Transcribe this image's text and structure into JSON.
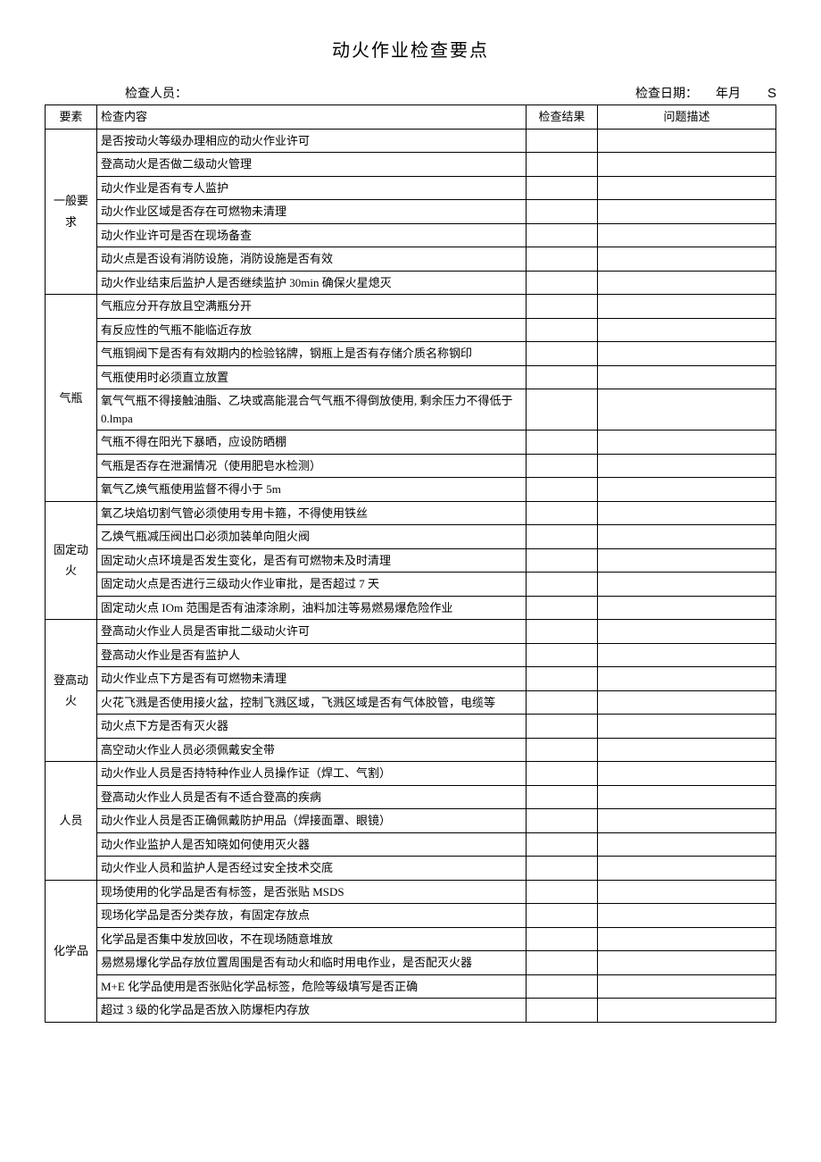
{
  "title": "动火作业检查要点",
  "header": {
    "inspector_label": "检查人员：",
    "date_label": "检查日期：",
    "date_ym": "年月",
    "date_s": "S"
  },
  "table": {
    "columns": [
      "要素",
      "检查内容",
      "检查结果",
      "问题描述"
    ],
    "sections": [
      {
        "category": "一般要求",
        "rows": [
          "是否按动火等级办理相应的动火作业许可",
          "登高动火是否做二级动火管理",
          "动火作业是否有专人监护",
          "动火作业区域是否存在可燃物未清理",
          "动火作业许可是否在现场备查",
          "动火点是否设有消防设施，消防设施是否有效",
          "动火作业结束后监护人是否继续监护 30min 确保火星熄灭"
        ]
      },
      {
        "category": "气瓶",
        "rows": [
          "气瓶应分开存放且空满瓶分开",
          "有反应性的气瓶不能临近存放",
          "气瓶铜阀下是否有有效期内的检验铭牌，钢瓶上是否有存储介质名称钢印",
          "气瓶使用时必须直立放置",
          "氧气气瓶不得接触油脂、乙块或高能混合气气瓶不得倒放使用, 剩余压力不得低于 0.lmpa",
          "气瓶不得在阳光下暴晒，应设防晒棚",
          "气瓶是否存在泄漏情况（使用肥皂水检测）",
          "氧气乙焕气瓶使用监督不得小于 5m"
        ]
      },
      {
        "category": "固定动火",
        "rows": [
          "氧乙块焰切割气管必须使用专用卡箍，不得使用铁丝",
          "乙焕气瓶减压阀出口必须加装单向阻火阀",
          "固定动火点环境是否发生变化，是否有可燃物未及时清理",
          "固定动火点是否进行三级动火作业审批，是否超过 7 天",
          "固定动火点 IOm 范围是否有油漆涂刷，油料加注等易燃易爆危险作业"
        ]
      },
      {
        "category": "登高动火",
        "rows": [
          "登高动火作业人员是否审批二级动火许可",
          "登高动火作业是否有监护人",
          "动火作业点下方是否有可燃物未清理",
          "火花飞溅是否使用接火盆，控制飞溅区域，飞溅区域是否有气体胶管，电缆等",
          "动火点下方是否有灭火器",
          "高空动火作业人员必须佩戴安全带"
        ]
      },
      {
        "category": "人员",
        "rows": [
          "动火作业人员是否持特种作业人员操作证（焊工、气割）",
          "登高动火作业人员是否有不适合登高的疾病",
          "动火作业人员是否正确佩戴防护用品（焊接面罩、眼镜）",
          "动火作业监护人是否知晓如何使用灭火器",
          "动火作业人员和监护人是否经过安全技术交底"
        ]
      },
      {
        "category": "化学品",
        "rows": [
          "现场使用的化学品是否有标签，是否张贴 MSDS",
          "现场化学品是否分类存放，有固定存放点",
          "化学品是否集中发放回收，不在现场随意堆放",
          "易燃易爆化学品存放位置周围是否有动火和临时用电作业，是否配灭火器",
          "M+E 化学品使用是否张贴化学品标签，危险等级填写是否正确",
          "超过 3 级的化学品是否放入防爆柜内存放"
        ]
      }
    ]
  }
}
